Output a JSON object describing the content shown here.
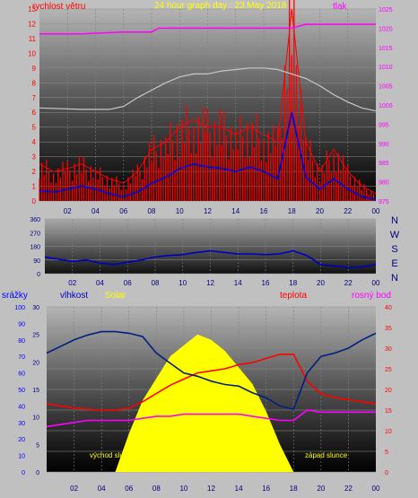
{
  "top": {
    "title": "24 hour graph day : 23.May 2018",
    "wind_label": "rychlost větru",
    "pressure_label": "tlak"
  },
  "dir_letters": [
    "N",
    "W",
    "S",
    "E",
    "N"
  ],
  "bottom": {
    "label_precip": "srážky",
    "label_humidity": "vlhkost",
    "label_solar": "Solar",
    "label_temp": "teplota",
    "label_dew": "rosný bod",
    "sunrise": "východ slunce",
    "sunset": "západ slunce"
  },
  "colors": {
    "bg": "#c0c0c0",
    "wind_gust": "#ff0000",
    "wind_avg": "#0000e0",
    "pressure": "#ff00ff",
    "temp_top": "#c8c8c8",
    "direction": "#0000c0",
    "humidity": "#002080",
    "temperature": "#ff0000",
    "dewpoint": "#ff00ff",
    "solar": "#ffff00",
    "title": "#ffff00"
  },
  "chart_data": [
    {
      "type": "line",
      "x_ticks": [
        "02",
        "04",
        "06",
        "08",
        "10",
        "12",
        "14",
        "16",
        "18",
        "20",
        "22",
        "00"
      ],
      "y_left_ticks": [
        "0",
        "1",
        "2",
        "3",
        "4",
        "5",
        "6",
        "7",
        "8",
        "9",
        "10",
        "11",
        "12",
        "13"
      ],
      "y_right_ticks": [
        "975",
        "980",
        "985",
        "990",
        "995",
        "1000",
        "1005",
        "1010",
        "1015",
        "1020",
        "1025"
      ],
      "ylim_left": [
        0,
        13
      ],
      "ylim_right": [
        975,
        1025
      ],
      "series": [
        {
          "name": "tlak",
          "axis": "right",
          "x": [
            0,
            3,
            6,
            8,
            8.5,
            12,
            14,
            18,
            19,
            24
          ],
          "values": [
            1018.5,
            1018.5,
            1019,
            1019,
            1020,
            1020,
            1020,
            1020,
            1021,
            1021
          ]
        },
        {
          "name": "rychlost větru",
          "axis": "left",
          "x": [
            0,
            1,
            2,
            3,
            4,
            5,
            6,
            7,
            8,
            9,
            10,
            11,
            12,
            13,
            14,
            15,
            16,
            17,
            18,
            19,
            20,
            21,
            22,
            23,
            24
          ],
          "values": [
            2.5,
            2,
            2.2,
            2.5,
            2,
            1.5,
            1.2,
            2,
            3.5,
            4,
            5,
            5.5,
            5,
            5,
            4.5,
            5,
            4.5,
            4,
            13,
            4,
            2,
            3.5,
            2,
            1,
            0.5
          ]
        },
        {
          "name": "",
          "axis": "left",
          "x": [
            0,
            1,
            2,
            3,
            4,
            5,
            6,
            7,
            8,
            9,
            10,
            11,
            12,
            13,
            14,
            15,
            16,
            17,
            18,
            19,
            20,
            21,
            22,
            23,
            24
          ],
          "values": [
            0.7,
            0.6,
            0.8,
            1,
            0.8,
            0.5,
            0.3,
            0.6,
            1.2,
            1.6,
            2.2,
            2.5,
            2.3,
            2.2,
            2,
            2.3,
            2,
            1.5,
            6,
            1.6,
            0.8,
            1.5,
            0.8,
            0.3,
            0.1
          ]
        },
        {
          "name": "",
          "axis": "left",
          "x": [
            0,
            3,
            5,
            6,
            7,
            8,
            9,
            10,
            11,
            12,
            13,
            14,
            15,
            16,
            17,
            18,
            19,
            20,
            21,
            22,
            23,
            24
          ],
          "values": [
            6.3,
            6.2,
            6.2,
            6.4,
            7,
            7.5,
            8,
            8.4,
            8.6,
            8.6,
            8.8,
            8.9,
            9,
            9,
            8.9,
            8.6,
            8.3,
            7.8,
            7.2,
            6.7,
            6.3,
            6.1
          ]
        }
      ]
    },
    {
      "type": "line",
      "x_ticks": [
        "02",
        "04",
        "06",
        "08",
        "10",
        "12",
        "14",
        "16",
        "18",
        "20",
        "22",
        "00"
      ],
      "y_ticks": [
        "0",
        "90",
        "180",
        "270",
        "360"
      ],
      "ylim": [
        0,
        360
      ],
      "series": [
        {
          "name": "",
          "x": [
            0,
            1,
            2,
            3,
            4,
            5,
            6,
            7,
            8,
            9,
            10,
            11,
            12,
            13,
            14,
            15,
            16,
            17,
            18,
            19,
            20,
            21,
            22,
            23,
            24
          ],
          "values": [
            110,
            95,
            80,
            90,
            70,
            60,
            75,
            90,
            110,
            120,
            125,
            140,
            150,
            140,
            130,
            130,
            125,
            130,
            150,
            120,
            60,
            50,
            40,
            45,
            60
          ]
        }
      ]
    },
    {
      "type": "line",
      "x_ticks": [
        "02",
        "04",
        "06",
        "08",
        "10",
        "12",
        "14",
        "16",
        "18",
        "20",
        "22",
        "00"
      ],
      "y_precip_ticks": [
        "0",
        "10",
        "20",
        "30",
        "40",
        "50",
        "60",
        "70",
        "80",
        "90",
        "100"
      ],
      "y_humidity_ticks": [
        "0",
        "5",
        "10",
        "15",
        "20",
        "25",
        "30"
      ],
      "y_temp_ticks": [
        "0",
        "5",
        "10",
        "15",
        "20",
        "25",
        "30",
        "35",
        "40"
      ],
      "series": [
        {
          "name": "vlhkost",
          "axis": "humidity",
          "x": [
            0,
            1,
            2,
            3,
            4,
            5,
            6,
            7,
            8,
            9,
            10,
            11,
            12,
            13,
            14,
            15,
            16,
            17,
            18,
            19,
            20,
            21,
            22,
            23,
            24
          ],
          "values": [
            72,
            76,
            80,
            83,
            85,
            85,
            84,
            82,
            72,
            66,
            60,
            58,
            55,
            53,
            52,
            48,
            45,
            40,
            38,
            60,
            70,
            72,
            75,
            80,
            84
          ]
        },
        {
          "name": "teplota",
          "axis": "temp",
          "x": [
            0,
            1,
            2,
            3,
            4,
            5,
            6,
            7,
            8,
            9,
            10,
            11,
            12,
            13,
            14,
            15,
            16,
            17,
            18,
            19,
            20,
            21,
            22,
            23,
            24
          ],
          "values": [
            16.5,
            16,
            15.5,
            15.2,
            15,
            15,
            15.5,
            17,
            19,
            21,
            22.5,
            24,
            24.5,
            25,
            26,
            26.5,
            27.5,
            28.5,
            28.5,
            22,
            19,
            18,
            17.5,
            17,
            16.5
          ]
        },
        {
          "name": "rosný bod",
          "axis": "temp",
          "x": [
            0,
            1,
            2,
            3,
            4,
            5,
            6,
            7,
            8,
            9,
            10,
            11,
            12,
            13,
            14,
            15,
            16,
            17,
            18,
            19,
            20,
            21,
            22,
            23,
            24
          ],
          "values": [
            11,
            11.5,
            12,
            12.5,
            12.5,
            12.5,
            12.5,
            13,
            13.5,
            13.5,
            14,
            14,
            14,
            14,
            14,
            13.5,
            13,
            12.5,
            12.5,
            15,
            14.5,
            14.5,
            14.5,
            14.5,
            14.5
          ]
        },
        {
          "name": "Solar",
          "axis": "humidity",
          "x": [
            5,
            6,
            7,
            8,
            9,
            10,
            11,
            12,
            13,
            14,
            15,
            16,
            17,
            18
          ],
          "values": [
            0,
            7,
            13,
            17,
            21,
            23,
            25,
            24,
            22,
            19,
            16,
            11,
            5,
            0
          ]
        }
      ]
    }
  ]
}
